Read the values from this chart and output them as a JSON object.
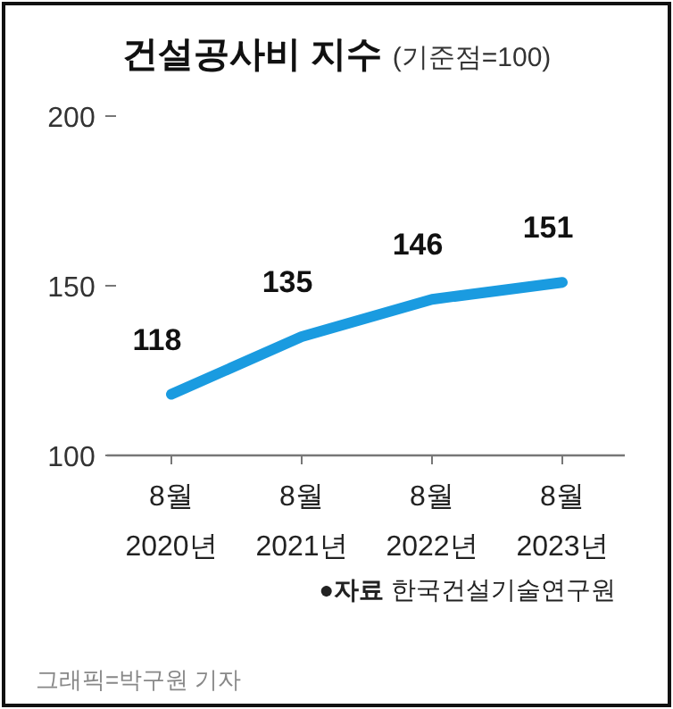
{
  "chart_data": {
    "type": "line",
    "title": "건설공사비 지수",
    "subtitle": "(기준점=100)",
    "categories": [
      "8월\n2020년",
      "8월\n2021년",
      "8월\n2022년",
      "8월\n2023년"
    ],
    "series": [
      {
        "color": "#1a9be0",
        "values": [
          118,
          135,
          146,
          151
        ]
      }
    ],
    "ylim": [
      100,
      200
    ],
    "yticks": [
      100,
      150,
      200
    ],
    "grid": false,
    "marker": "none",
    "line_style": "solid",
    "data_labels": true,
    "annotations": [
      "●자료 한국건설기술연구원",
      "그래픽=박구원 기자"
    ]
  }
}
